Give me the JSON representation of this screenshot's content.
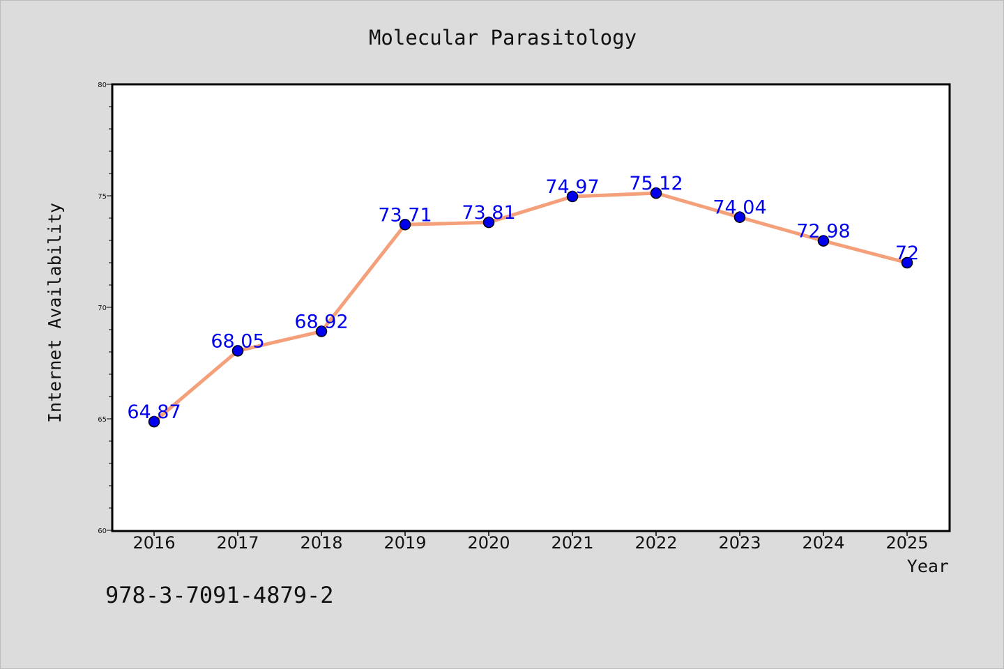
{
  "chart_data": {
    "type": "line",
    "title": "Molecular Parasitology",
    "xlabel": "Year",
    "ylabel": "Internet Availability",
    "categories": [
      "2016",
      "2017",
      "2018",
      "2019",
      "2020",
      "2021",
      "2022",
      "2023",
      "2024",
      "2025"
    ],
    "series": [
      {
        "values": [
          64.87,
          68.05,
          68.92,
          73.71,
          73.81,
          74.97,
          75.12,
          74.04,
          72.98,
          72
        ],
        "data_labels": [
          "64.87",
          "68.05",
          "68.92",
          "73.71",
          "73.81",
          "74.97",
          "75.12",
          "74.04",
          "72.98",
          "72"
        ],
        "line_color": "#f4a07a",
        "marker_color": "#0000ee",
        "label_color": "#0000ee"
      }
    ],
    "ylim": [
      60,
      80
    ],
    "yticks": [
      60,
      65,
      70,
      75,
      80
    ],
    "grid": false,
    "legend": "none"
  },
  "footer_code": "978-3-7091-4879-2"
}
